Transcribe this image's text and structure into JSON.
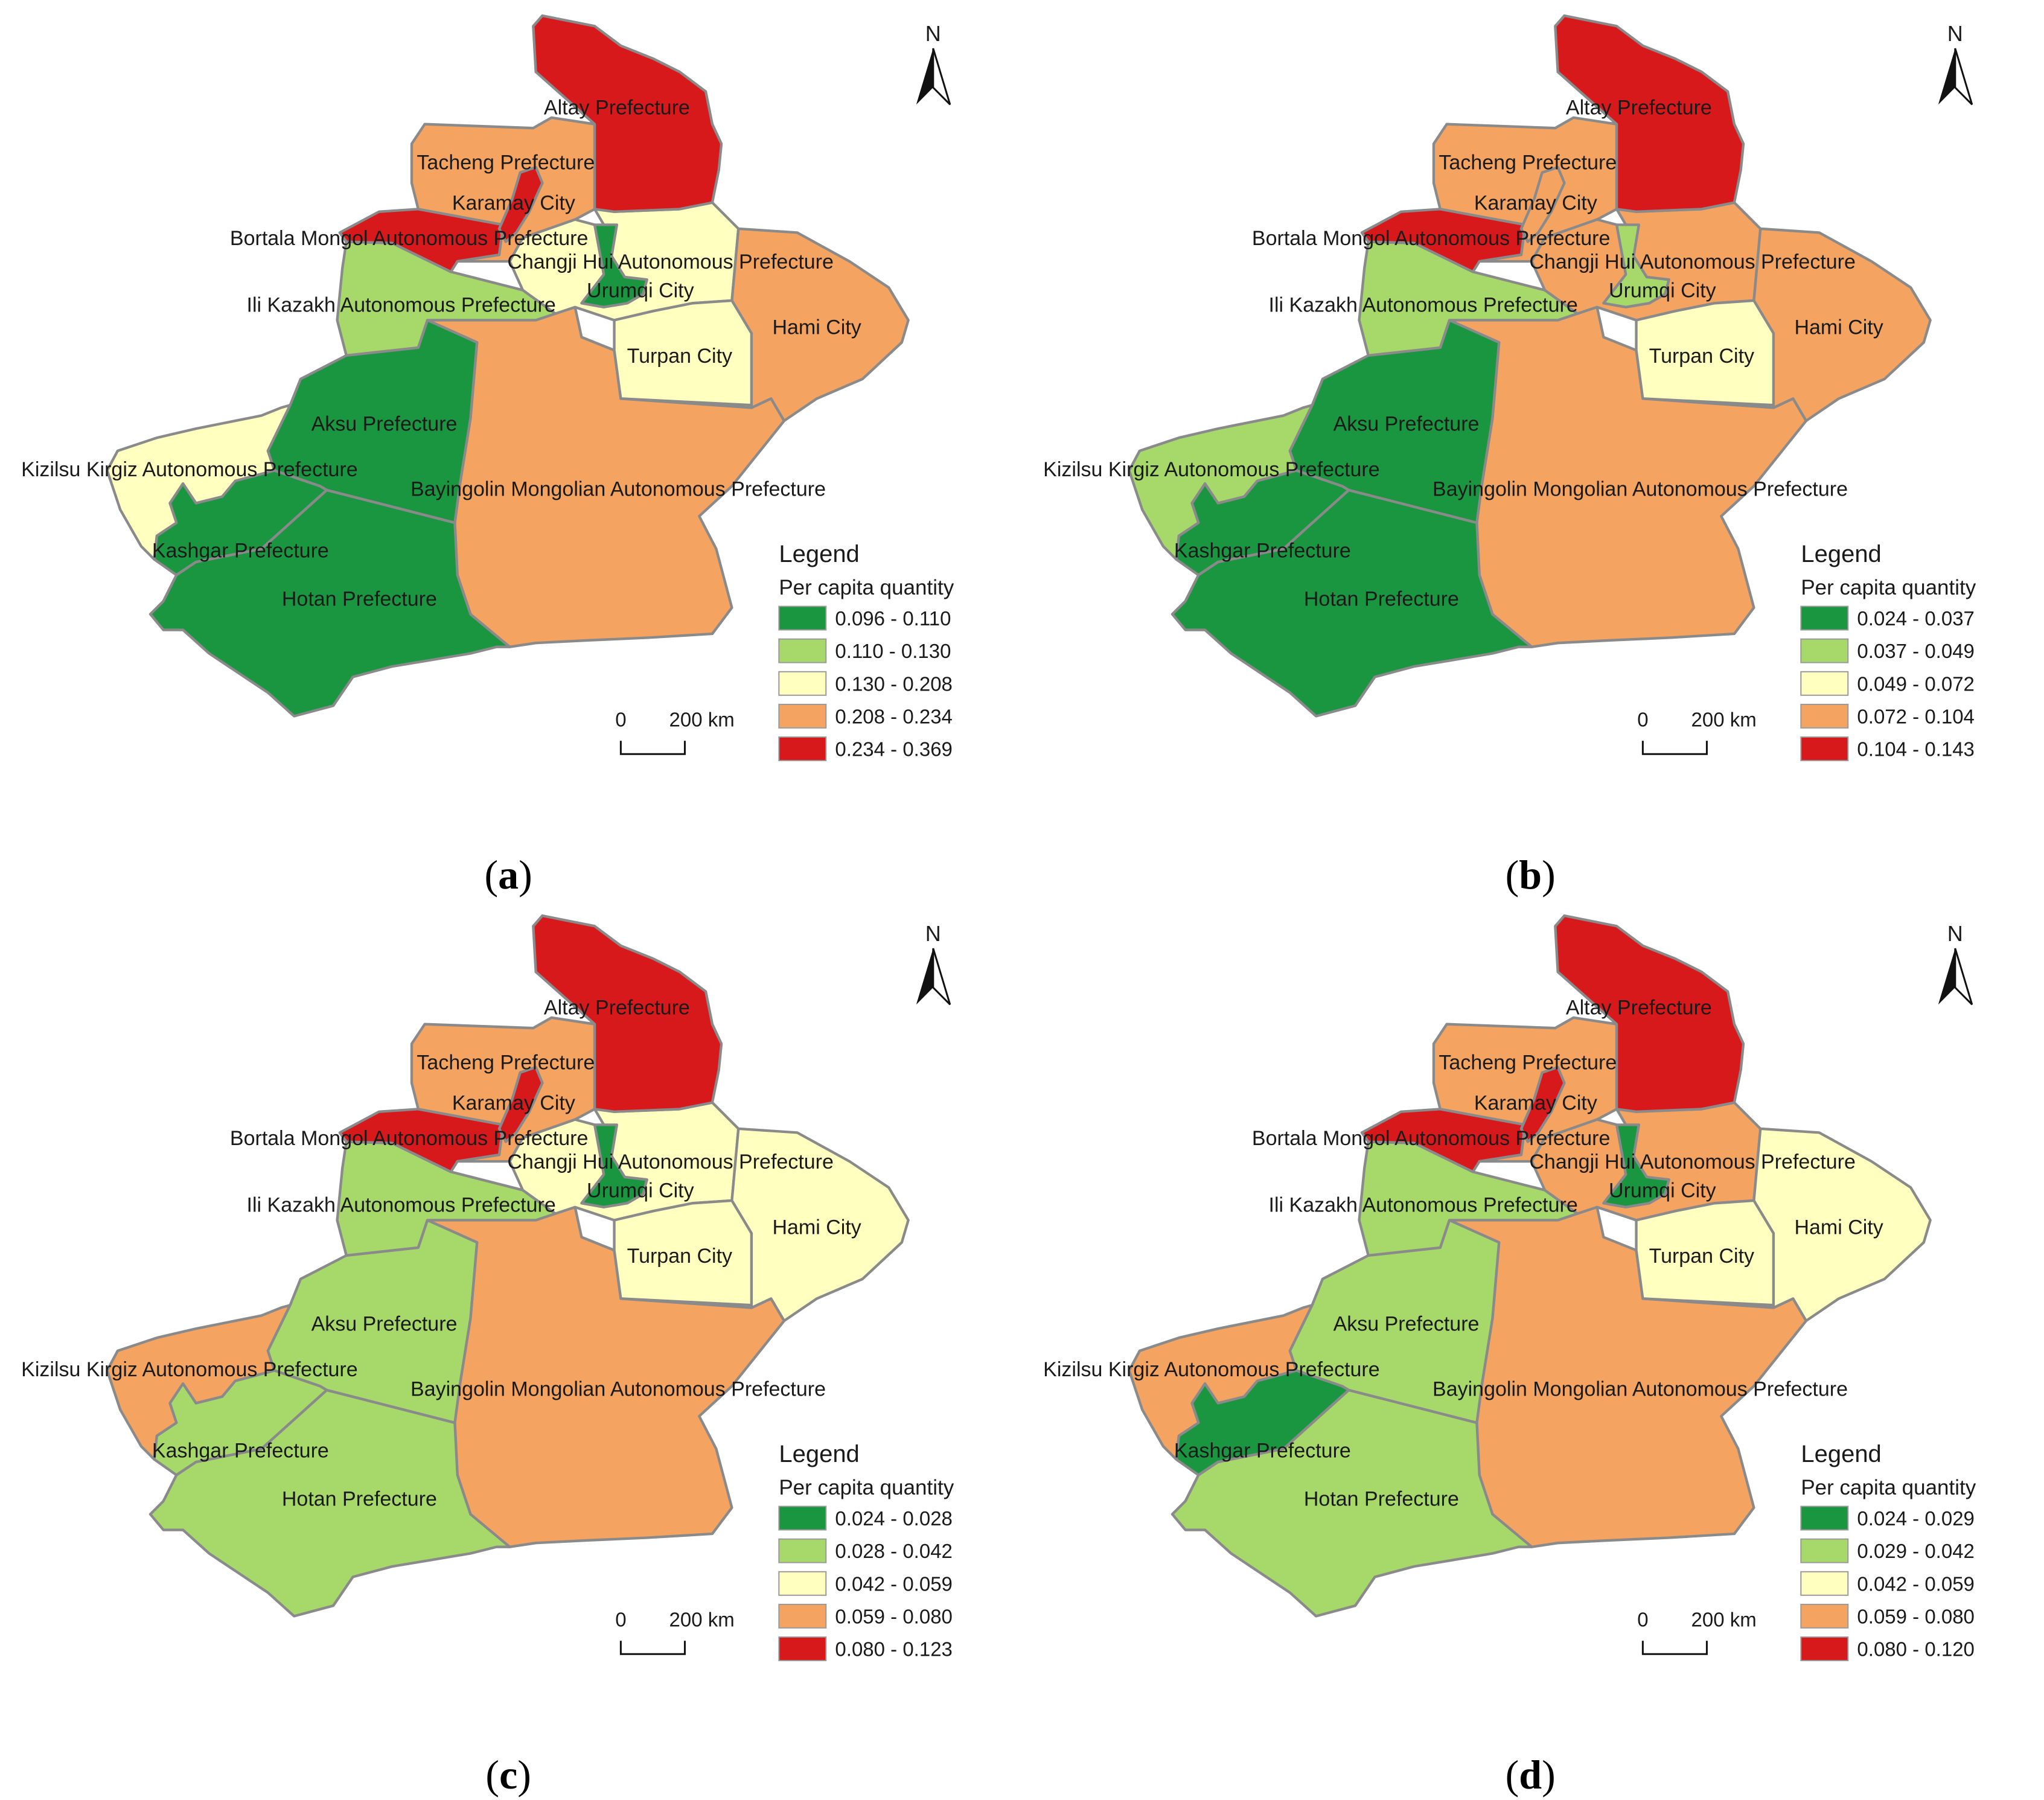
{
  "map_common": {
    "north_label": "N",
    "legend_title": "Legend",
    "legend_subtitle": "Per capita quantity",
    "scale_zero": "0",
    "scale_distance": "200 km",
    "class_colors": [
      "#1a9641",
      "#a6d96a",
      "#ffffc0",
      "#f4a460",
      "#d7191c"
    ],
    "region_labels": {
      "altay": "Altay Prefecture",
      "tacheng": "Tacheng Prefecture",
      "karamay": "Karamay City",
      "bortala": "Bortala Mongol Autonomous Prefecture",
      "changji": "Changji Hui Autonomous Prefecture",
      "urumqi": "Urumqi City",
      "ili": "Ili Kazakh Autonomous Prefecture",
      "hami": "Hami City",
      "turpan": "Turpan City",
      "aksu": "Aksu Prefecture",
      "kizilsu": "Kizilsu Kirgiz Autonomous Prefecture",
      "bayingolin": "Bayingolin Mongolian Autonomous Prefecture",
      "kashgar": "Kashgar Prefecture",
      "hotan": "Hotan Prefecture"
    }
  },
  "maps": [
    {
      "caption_open": "(",
      "caption_letter": "a",
      "caption_close": ")",
      "legend_ranges": [
        "0.096 - 0.110",
        "0.110 - 0.130",
        "0.130 - 0.208",
        "0.208 - 0.234",
        "0.234 - 0.369"
      ],
      "region_class": {
        "altay": 5,
        "tacheng": 4,
        "karamay": 5,
        "bortala": 5,
        "changji": 3,
        "urumqi": 1,
        "ili": 2,
        "hami": 4,
        "turpan": 3,
        "aksu": 1,
        "kizilsu": 3,
        "bayingolin": 4,
        "kashgar": 1,
        "hotan": 1
      }
    },
    {
      "caption_open": "(",
      "caption_letter": "b",
      "caption_close": ")",
      "legend_ranges": [
        "0.024 - 0.037",
        "0.037 - 0.049",
        "0.049 - 0.072",
        "0.072 - 0.104",
        "0.104 - 0.143"
      ],
      "region_class": {
        "altay": 5,
        "tacheng": 4,
        "karamay": 4,
        "bortala": 5,
        "changji": 4,
        "urumqi": 2,
        "ili": 2,
        "hami": 4,
        "turpan": 3,
        "aksu": 1,
        "kizilsu": 2,
        "bayingolin": 4,
        "kashgar": 1,
        "hotan": 1
      }
    },
    {
      "caption_open": "(",
      "caption_letter": "c",
      "caption_close": ")",
      "legend_ranges": [
        "0.024 - 0.028",
        "0.028 - 0.042",
        "0.042 - 0.059",
        "0.059 - 0.080",
        "0.080 - 0.123"
      ],
      "region_class": {
        "altay": 5,
        "tacheng": 4,
        "karamay": 5,
        "bortala": 5,
        "changji": 3,
        "urumqi": 1,
        "ili": 2,
        "hami": 3,
        "turpan": 3,
        "aksu": 2,
        "kizilsu": 4,
        "bayingolin": 4,
        "kashgar": 2,
        "hotan": 2
      }
    },
    {
      "caption_open": "(",
      "caption_letter": "d",
      "caption_close": ")",
      "legend_ranges": [
        "0.024 - 0.029",
        "0.029 - 0.042",
        "0.042 - 0.059",
        "0.059 - 0.080",
        "0.080 - 0.120"
      ],
      "region_class": {
        "altay": 5,
        "tacheng": 4,
        "karamay": 5,
        "bortala": 5,
        "changji": 4,
        "urumqi": 1,
        "ili": 2,
        "hami": 3,
        "turpan": 3,
        "aksu": 2,
        "kizilsu": 4,
        "bayingolin": 4,
        "kashgar": 1,
        "hotan": 2
      }
    }
  ]
}
